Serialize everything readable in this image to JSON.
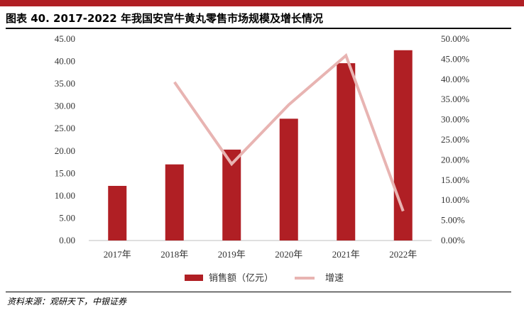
{
  "title": "图表 40. 2017-2022 年我国安宫牛黄丸零售市场规模及增长情况",
  "source": "资料来源：观研天下，中银证券",
  "colors": {
    "accent": "#b01f24",
    "bar": "#b01f24",
    "line": "#e8b4b2"
  },
  "chart_data": {
    "type": "bar",
    "categories": [
      "2017年",
      "2018年",
      "2019年",
      "2020年",
      "2021年",
      "2022年"
    ],
    "series": [
      {
        "name": "销售额（亿元）",
        "type": "bar",
        "axis": "left",
        "values": [
          12.2,
          17.0,
          20.3,
          27.2,
          39.6,
          42.5
        ]
      },
      {
        "name": "增速",
        "type": "line",
        "axis": "right",
        "values": [
          null,
          0.393,
          0.19,
          0.337,
          0.459,
          0.073
        ]
      }
    ],
    "y_left": {
      "ylim": [
        0,
        45
      ],
      "ticks": [
        "0.00",
        "5.00",
        "10.00",
        "15.00",
        "20.00",
        "25.00",
        "30.00",
        "35.00",
        "40.00",
        "45.00"
      ]
    },
    "y_right": {
      "ylim": [
        0,
        0.5
      ],
      "ticks": [
        "0.00%",
        "5.00%",
        "10.00%",
        "15.00%",
        "20.00%",
        "25.00%",
        "30.00%",
        "35.00%",
        "40.00%",
        "45.00%",
        "50.00%"
      ]
    },
    "legend_position": "bottom"
  }
}
